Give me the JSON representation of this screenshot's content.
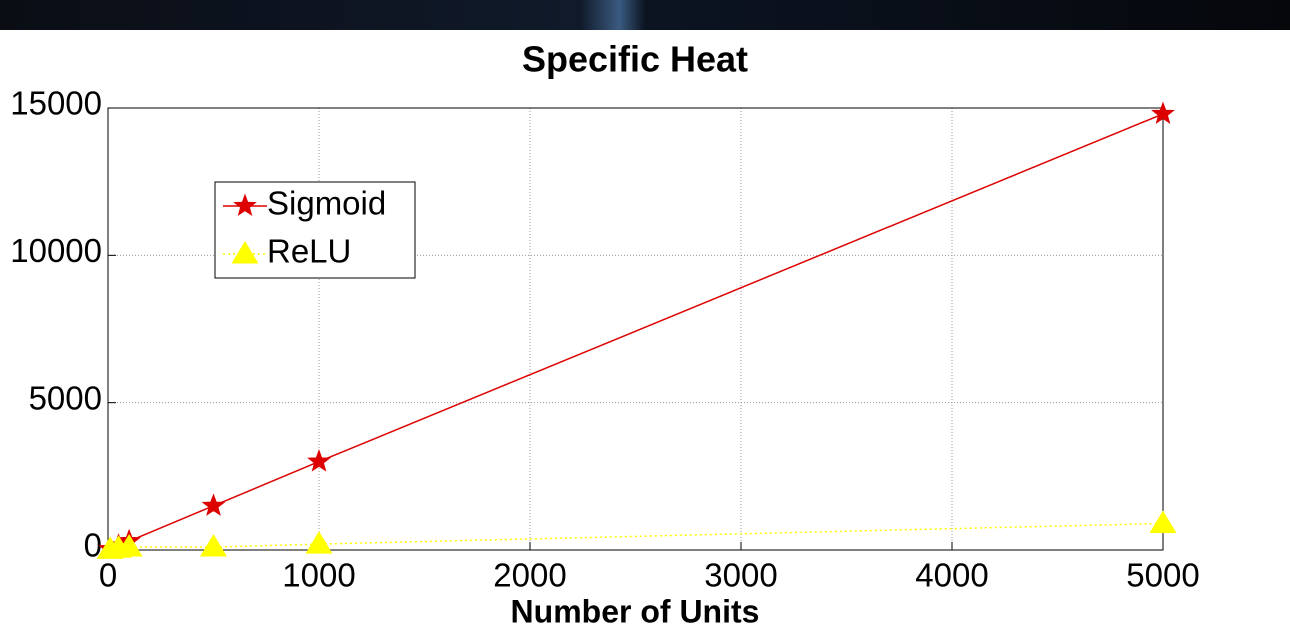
{
  "chart_data": {
    "type": "line",
    "title": "Specific Heat",
    "x_label": "Number of Units",
    "x": [
      10,
      50,
      100,
      500,
      1000,
      5000
    ],
    "series": [
      {
        "name": "Sigmoid",
        "color": "#dd0000",
        "marker": "star",
        "line_style": "solid",
        "values": [
          30,
          150,
          300,
          1500,
          3000,
          14800
        ]
      },
      {
        "name": "ReLU",
        "color": "#ffff00",
        "marker": "triangle",
        "line_style": "dotted",
        "values": [
          20,
          60,
          100,
          100,
          200,
          900
        ]
      }
    ],
    "xlim": [
      0,
      5000
    ],
    "xticks": [
      0,
      1000,
      2000,
      3000,
      4000,
      5000
    ],
    "ylim": [
      0,
      15000
    ],
    "yticks": [
      0,
      5000,
      10000,
      15000
    ],
    "grid": true,
    "legend_loc": "upper left"
  }
}
